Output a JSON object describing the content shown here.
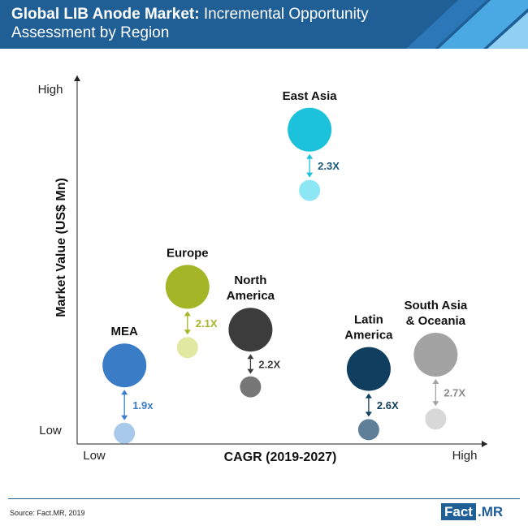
{
  "header": {
    "title_bold": "Global LIB Anode Market:",
    "title_rest": " Incremental Opportunity Assessment by Region"
  },
  "chart_data": {
    "type": "bubble",
    "title": "Global LIB Anode Market: Incremental Opportunity Assessment by Region",
    "xlabel": "CAGR (2019-2027)",
    "ylabel": "Market Value (US$ Mn)",
    "x_tick_labels": [
      "Low",
      "High"
    ],
    "y_tick_labels": [
      "Low",
      "High"
    ],
    "grid": false,
    "regions": [
      {
        "name": "MEA",
        "label_lines": [
          "MEA"
        ],
        "x": 0.12,
        "y_start": 0.03,
        "y_end": 0.22,
        "multiplier": "1.9x",
        "color_big": "#3a7cc5",
        "color_small": "#a8c9ea",
        "color_arrow": "#3a7cc5",
        "color_text": "#3a7cc5"
      },
      {
        "name": "Europe",
        "label_lines": [
          "Europe"
        ],
        "x": 0.28,
        "y_start": 0.27,
        "y_end": 0.44,
        "multiplier": "2.1X",
        "color_big": "#a4b628",
        "color_small": "#e1e8a2",
        "color_arrow": "#a4b628",
        "color_text": "#a4b628"
      },
      {
        "name": "North America",
        "label_lines": [
          "North",
          "America"
        ],
        "x": 0.44,
        "y_start": 0.16,
        "y_end": 0.32,
        "multiplier": "2.2X",
        "color_big": "#3c3c3c",
        "color_small": "#777777",
        "color_arrow": "#3c3c3c",
        "color_text": "#3c3c3c"
      },
      {
        "name": "East Asia",
        "label_lines": [
          "East Asia"
        ],
        "x": 0.59,
        "y_start": 0.71,
        "y_end": 0.88,
        "multiplier": "2.3X",
        "color_big": "#1cc1dc",
        "color_small": "#8ce6f4",
        "color_arrow": "#1cc1dc",
        "color_text": "#1a5a7a"
      },
      {
        "name": "Latin America",
        "label_lines": [
          "Latin",
          "America"
        ],
        "x": 0.74,
        "y_start": 0.04,
        "y_end": 0.21,
        "multiplier": "2.6X",
        "color_big": "#0f3e5e",
        "color_small": "#5e7f97",
        "color_arrow": "#0f3e5e",
        "color_text": "#0f3e5e"
      },
      {
        "name": "South Asia & Oceania",
        "label_lines": [
          "South Asia",
          "& Oceania"
        ],
        "x": 0.91,
        "y_start": 0.07,
        "y_end": 0.25,
        "multiplier": "2.7X",
        "color_big": "#a3a3a3",
        "color_small": "#d8d8d8",
        "color_arrow": "#a3a3a3",
        "color_text": "#8a8a8a"
      }
    ]
  },
  "source": "Source: Fact.MR, 2019",
  "logo": {
    "part1": "Fact",
    "part2": ".MR"
  }
}
